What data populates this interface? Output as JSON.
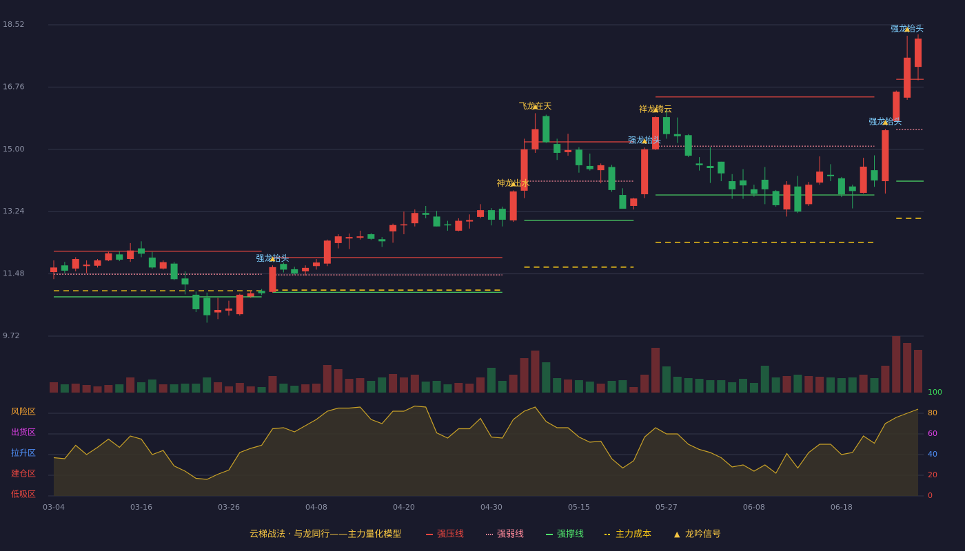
{
  "chart_data": {
    "type": "candlestick",
    "categories": [
      "03-04",
      null,
      null,
      null,
      null,
      null,
      null,
      null,
      "03-16",
      null,
      null,
      null,
      null,
      null,
      null,
      null,
      "03-26",
      null,
      null,
      null,
      null,
      null,
      null,
      null,
      "04-08",
      null,
      null,
      null,
      null,
      null,
      null,
      null,
      "04-20",
      null,
      null,
      null,
      null,
      null,
      null,
      null,
      "04-30",
      null,
      null,
      null,
      null,
      null,
      null,
      null,
      "05-15",
      null,
      null,
      null,
      null,
      null,
      null,
      null,
      "05-27",
      null,
      null,
      null,
      null,
      null,
      null,
      null,
      "06-08",
      null,
      null,
      null,
      null,
      null,
      null,
      null,
      "06-18",
      null,
      null,
      null,
      null,
      null,
      null,
      null
    ],
    "open": [
      11.53,
      11.72,
      11.63,
      11.7,
      11.71,
      11.86,
      12.03,
      11.9,
      12.2,
      11.94,
      11.63,
      11.77,
      11.35,
      10.89,
      10.8,
      10.39,
      10.44,
      10.34,
      10.84,
      11.0,
      10.97,
      11.76,
      11.61,
      11.55,
      11.7,
      11.77,
      12.35,
      12.48,
      12.5,
      12.6,
      12.46,
      12.68,
      12.85,
      12.91,
      13.2,
      13.1,
      12.88,
      12.7,
      12.96,
      13.09,
      13.28,
      13.32,
      12.99,
      13.83,
      15.0,
      15.94,
      15.15,
      14.92,
      14.99,
      14.53,
      14.41,
      14.5,
      13.71,
      13.4,
      13.73,
      15.0,
      15.91,
      15.43,
      15.4,
      14.6,
      14.53,
      14.65,
      14.1,
      14.12,
      13.87,
      14.14,
      13.82,
      13.3,
      13.95,
      13.45,
      14.06,
      14.28,
      14.18,
      13.95,
      13.77,
      14.41,
      14.1,
      15.8,
      16.46,
      17.33
    ],
    "close": [
      11.66,
      11.57,
      11.9,
      11.74,
      11.86,
      12.06,
      11.88,
      12.14,
      12.05,
      11.66,
      11.81,
      11.33,
      11.18,
      10.48,
      10.31,
      10.46,
      10.5,
      10.89,
      10.93,
      10.93,
      11.67,
      11.6,
      11.49,
      11.65,
      11.8,
      12.42,
      12.54,
      12.52,
      12.54,
      12.47,
      12.4,
      12.86,
      12.88,
      13.2,
      13.15,
      12.82,
      12.85,
      12.98,
      13.0,
      13.28,
      13.01,
      13.01,
      13.81,
      15.0,
      15.57,
      15.2,
      14.9,
      14.98,
      14.55,
      14.44,
      14.55,
      13.85,
      13.32,
      13.61,
      15.0,
      15.91,
      15.43,
      15.37,
      14.82,
      14.55,
      14.47,
      14.32,
      13.87,
      13.98,
      13.74,
      13.87,
      13.42,
      14.0,
      13.24,
      14.0,
      14.37,
      14.24,
      13.73,
      13.82,
      14.51,
      14.12,
      15.54,
      16.63,
      17.59,
      18.13
    ],
    "high": [
      11.86,
      11.82,
      11.95,
      11.86,
      11.9,
      12.1,
      12.12,
      12.35,
      12.4,
      12.1,
      11.86,
      11.82,
      11.55,
      10.98,
      10.95,
      10.8,
      10.72,
      10.92,
      11.02,
      11.05,
      11.72,
      11.8,
      11.68,
      11.72,
      11.9,
      12.45,
      12.6,
      12.62,
      12.7,
      12.63,
      12.52,
      12.9,
      13.24,
      13.3,
      13.4,
      13.26,
      12.98,
      13.05,
      13.16,
      13.45,
      13.34,
      13.38,
      13.84,
      15.3,
      16.02,
      15.98,
      15.3,
      15.44,
      15.06,
      14.88,
      14.6,
      14.56,
      13.9,
      13.63,
      15.05,
      15.93,
      16.14,
      15.9,
      15.43,
      14.78,
      15.06,
      14.65,
      14.3,
      14.44,
      14.0,
      14.5,
      13.85,
      14.1,
      14.25,
      14.08,
      14.8,
      14.58,
      14.22,
      14.0,
      14.76,
      14.83,
      15.58,
      16.66,
      18.21,
      18.25
    ],
    "low": [
      11.33,
      11.5,
      11.55,
      11.5,
      11.66,
      11.84,
      11.84,
      11.82,
      11.95,
      11.62,
      11.6,
      11.3,
      10.9,
      10.4,
      10.1,
      10.2,
      10.3,
      10.3,
      10.8,
      10.88,
      10.95,
      11.52,
      11.46,
      11.43,
      11.6,
      11.7,
      12.2,
      12.18,
      12.45,
      12.44,
      12.24,
      12.36,
      12.6,
      12.82,
      13.05,
      12.82,
      12.7,
      12.68,
      12.76,
      13.05,
      12.85,
      12.82,
      12.95,
      13.62,
      14.9,
      15.18,
      14.7,
      14.82,
      14.34,
      14.4,
      14.04,
      13.8,
      13.32,
      13.3,
      13.62,
      14.98,
      15.3,
      15.18,
      14.78,
      14.4,
      14.05,
      14.1,
      13.6,
      13.6,
      13.66,
      13.45,
      13.38,
      13.1,
      13.2,
      13.4,
      14.0,
      14.1,
      13.65,
      13.33,
      13.75,
      13.94,
      13.75,
      15.8,
      16.4,
      16.95
    ],
    "up_color": "#e8463f",
    "down_color": "#27a85f",
    "ylim": [
      9.72,
      18.52
    ],
    "yticks": [
      9.72,
      11.48,
      13.24,
      {
        "value": 15,
        "label": "15.00"
      },
      16.76,
      18.52
    ],
    "grid": true,
    "volume": [
      15,
      12,
      13,
      11,
      9,
      11,
      12,
      22,
      15,
      19,
      12,
      12,
      13,
      13,
      22,
      15,
      9,
      14,
      9,
      8,
      24,
      13,
      10,
      12,
      13,
      40,
      34,
      20,
      21,
      17,
      22,
      27,
      22,
      26,
      16,
      17,
      12,
      14,
      13,
      22,
      36,
      17,
      26,
      50,
      61,
      44,
      21,
      19,
      18,
      16,
      13,
      17,
      18,
      8,
      26,
      65,
      38,
      23,
      21,
      20,
      18,
      18,
      15,
      20,
      14,
      39,
      22,
      24,
      26,
      24,
      23,
      22,
      21,
      22,
      26,
      21,
      39,
      82,
      72,
      62
    ],
    "oscillator": {
      "values": [
        37,
        36,
        49,
        40,
        47,
        55,
        47,
        58,
        55,
        40,
        44,
        29,
        24,
        17,
        16,
        21,
        25,
        42,
        46,
        49,
        65,
        66,
        62,
        68,
        74,
        82,
        85,
        85,
        86,
        74,
        70,
        82,
        82,
        87,
        86,
        61,
        56,
        65,
        65,
        75,
        57,
        56,
        74,
        82,
        86,
        72,
        66,
        66,
        57,
        52,
        53,
        36,
        27,
        34,
        57,
        66,
        60,
        60,
        50,
        45,
        42,
        37,
        28,
        30,
        24,
        30,
        22,
        41,
        27,
        42,
        50,
        50,
        40,
        42,
        58,
        51,
        70,
        76,
        80,
        84
      ],
      "ylim": [
        0,
        100
      ],
      "yticks": [
        0,
        20,
        40,
        60,
        80,
        100
      ],
      "tick_colors": [
        "#e8463f",
        "#e8463f",
        "#4f8ff7",
        "#e040e8",
        "#f0a030",
        "#3ddc5a"
      ],
      "zones": [
        {
          "label": "低吸区",
          "color": "#e8463f"
        },
        {
          "label": "建仓区",
          "color": "#e8463f"
        },
        {
          "label": "拉升区",
          "color": "#4f8ff7"
        },
        {
          "label": "出货区",
          "color": "#e040e8"
        },
        {
          "label": "风险区",
          "color": "#f0a030"
        }
      ],
      "color": "#c9a227"
    },
    "level_series": [
      {
        "name": "强压线",
        "color": "#e8463f",
        "style": "solid"
      },
      {
        "name": "强弱线",
        "color": "#ff8a9a",
        "style": "dotted"
      },
      {
        "name": "强撑线",
        "color": "#4ee06a",
        "style": "solid"
      },
      {
        "name": "主力成本",
        "color": "#f5c518",
        "style": "dashed"
      }
    ],
    "levels": [
      {
        "start": 0,
        "end": 19,
        "values": [
          12.12,
          11.47,
          10.83,
          11.0
        ]
      },
      {
        "start": 20,
        "end": 41,
        "values": [
          11.94,
          11.45,
          10.96,
          11.02
        ]
      },
      {
        "start": 43,
        "end": 53,
        "values": [
          15.21,
          14.1,
          12.99,
          11.67
        ]
      },
      {
        "start": 55,
        "end": 75,
        "values": [
          16.48,
          15.09,
          13.71,
          12.37
        ]
      },
      {
        "start": 77,
        "end": 79,
        "values": [
          16.98,
          15.56,
          14.1,
          13.05
        ]
      }
    ],
    "signals": [
      {
        "index": 20,
        "text": "强龙抬头",
        "color": "#7fd0ff"
      },
      {
        "index": 42,
        "text": "神龙出水",
        "color": "#f5c542"
      },
      {
        "index": 44,
        "text": "飞龙在天",
        "color": "#f5c542"
      },
      {
        "index": 54,
        "text": "强龙抬头",
        "color": "#7fd0ff"
      },
      {
        "index": 55,
        "text": "祥龙腾云",
        "color": "#f5c542"
      },
      {
        "index": 76,
        "text": "强龙抬头",
        "color": "#7fd0ff"
      },
      {
        "index": 78,
        "text": "强龙抬头",
        "color": "#7fd0ff"
      }
    ],
    "legend": {
      "title": "云梯战法 · 与龙同行——主力量化模型",
      "title_color": "#f5c542",
      "signal_name": "龙吟信号",
      "signal_marker": "▲",
      "signal_color": "#f5c542"
    }
  }
}
